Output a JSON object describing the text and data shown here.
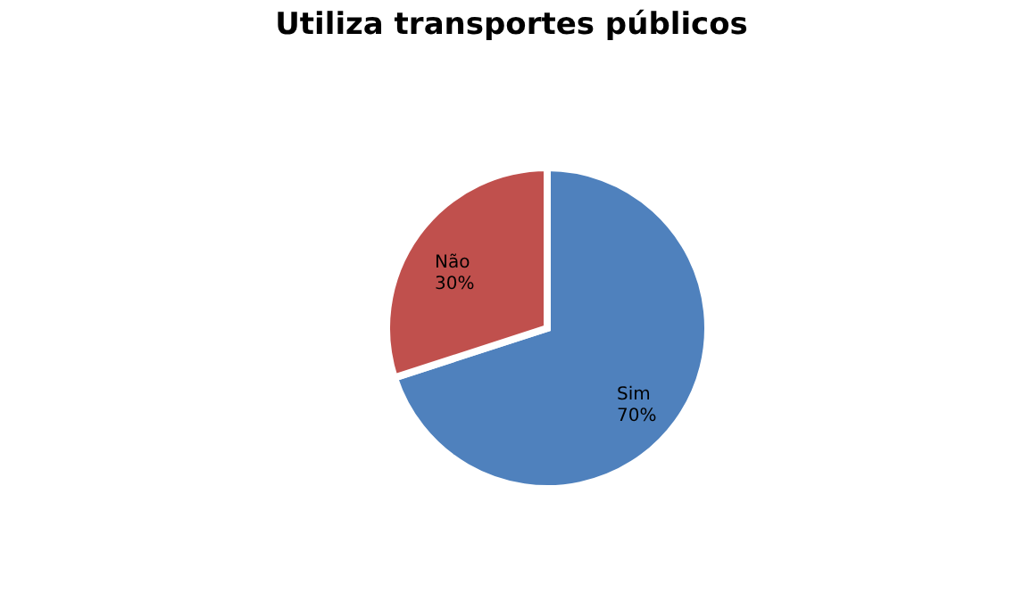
{
  "chart_data": {
    "type": "pie",
    "title": "Utiliza transportes públicos",
    "categories": [
      "Sim",
      "Não"
    ],
    "values": [
      70,
      30
    ],
    "value_labels": [
      "70%",
      "30%"
    ],
    "colors": [
      "#4f81bd",
      "#c0504d"
    ],
    "legend": false
  }
}
